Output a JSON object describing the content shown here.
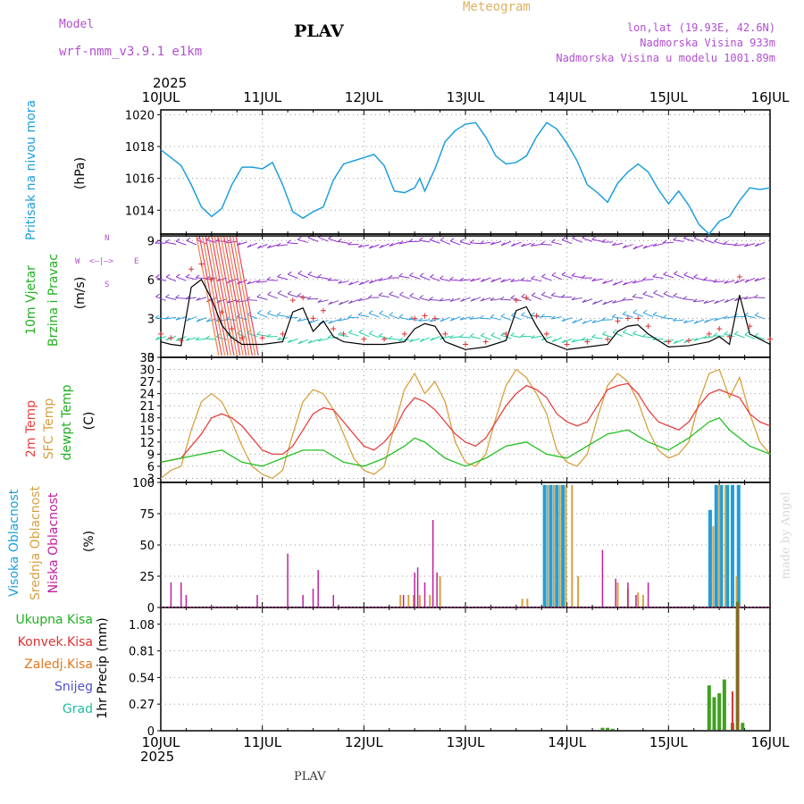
{
  "header": {
    "model_label": "Model",
    "model_name": "wrf-nmm_v3.9.1  e1km",
    "station": "PLAV",
    "title": "Meteogram",
    "lonlat": "lon,lat (19.93E, 42.6N)",
    "altitude": "Nadmorska Visina 933m",
    "model_altitude": "Nadmorska Visina u modelu 1001.89m",
    "credit": "made by Angel",
    "footer_station": "PLAV"
  },
  "time_axis": {
    "year": "2025",
    "ticks": [
      "10JUL",
      "11JUL",
      "12JUL",
      "13JUL",
      "14JUL",
      "15JUL",
      "16JUL"
    ]
  },
  "colors": {
    "pressure": "#1e9fdc",
    "wind_speed": "#000000",
    "gust": "#e03030",
    "temp2m": "#e84040",
    "sfc_temp": "#d8a040",
    "dewpt": "#20c020",
    "high_cloud": "#1e9fdc",
    "mid_cloud": "#d8a040",
    "low_cloud": "#c020a0",
    "total_precip": "#40a020",
    "conv_precip": "#e03030"
  },
  "panels": {
    "pressure": {
      "labels": [
        "Pritisak na nivou mora",
        "(hPa)"
      ],
      "yticks": [
        "1014",
        "1016",
        "1018",
        "1020"
      ]
    },
    "wind": {
      "labels": [
        "10m Vjetar",
        "Brzina i Pravac",
        "(m/s)"
      ],
      "yticks": [
        "0",
        "3",
        "6",
        "9"
      ],
      "compass": {
        "n": "N",
        "s": "S",
        "e": "E",
        "w": "W"
      }
    },
    "temp": {
      "labels": [
        "2m Temp",
        "SFC Temp",
        "dewpt Temp",
        "(C)"
      ],
      "yticks": [
        "3",
        "6",
        "9",
        "12",
        "15",
        "18",
        "21",
        "24",
        "27",
        "30",
        "33"
      ]
    },
    "cloud": {
      "labels": [
        "Visoka Oblacnost",
        "Srednja Oblacnost",
        "Niska Oblacnost",
        "(%)"
      ],
      "yticks": [
        "0",
        "25",
        "50",
        "75",
        "100"
      ]
    },
    "precip": {
      "labels": [
        "Ukupna Kisa",
        "Konvek.Kisa",
        "Zaledj.Kisa",
        "Snijeg",
        "Grad",
        "1hr Precip (mm)"
      ],
      "yticks": [
        "0",
        "0.27",
        "0.54",
        "0.81",
        "1.08"
      ]
    }
  },
  "chart_data": [
    {
      "type": "line",
      "panel": "pressure",
      "x_unit": "day_index",
      "ylim": [
        1012.5,
        1020.3
      ],
      "series": [
        {
          "x": [
            0,
            0.1,
            0.2,
            0.3,
            0.4,
            0.5,
            0.6,
            0.7,
            0.8,
            0.9,
            1.0,
            1.1,
            1.2,
            1.3,
            1.4,
            1.5,
            1.6,
            1.7,
            1.8,
            1.9,
            2.0,
            2.1,
            2.2,
            2.3,
            2.4,
            2.5,
            2.55,
            2.6,
            2.7,
            2.8,
            2.9,
            3.0,
            3.1,
            3.2,
            3.3,
            3.4,
            3.5,
            3.6,
            3.7,
            3.8,
            3.9,
            4.0,
            4.1,
            4.2,
            4.3,
            4.4,
            4.5,
            4.6,
            4.7,
            4.8,
            4.9,
            5.0,
            5.1,
            5.2,
            5.3,
            5.4,
            5.5,
            5.6,
            5.7,
            5.8,
            5.9,
            6.0
          ],
          "values": [
            1017.8,
            1017.3,
            1016.8,
            1015.6,
            1014.2,
            1013.6,
            1014.1,
            1015.6,
            1016.7,
            1016.7,
            1016.6,
            1017.0,
            1015.6,
            1013.9,
            1013.5,
            1013.9,
            1014.2,
            1015.9,
            1016.9,
            1017.1,
            1017.3,
            1017.5,
            1016.8,
            1015.2,
            1015.1,
            1015.4,
            1016.0,
            1015.2,
            1016.6,
            1018.3,
            1019.0,
            1019.4,
            1019.5,
            1018.6,
            1017.4,
            1016.9,
            1017.0,
            1017.4,
            1018.6,
            1019.5,
            1019.1,
            1018.2,
            1017.1,
            1015.6,
            1015.1,
            1014.5,
            1015.7,
            1016.4,
            1016.9,
            1016.4,
            1015.3,
            1014.4,
            1015.2,
            1014.3,
            1013.1,
            1012.5,
            1013.3,
            1013.6,
            1014.6,
            1015.4,
            1015.3,
            1015.4
          ]
        }
      ]
    },
    {
      "type": "line",
      "panel": "wind",
      "x_unit": "day_index",
      "ylim": [
        0,
        9.5
      ],
      "series": [
        {
          "x": [
            0,
            0.1,
            0.2,
            0.3,
            0.4,
            0.5,
            0.6,
            0.7,
            0.8,
            1.0,
            1.2,
            1.3,
            1.4,
            1.5,
            1.6,
            1.7,
            1.8,
            2.0,
            2.2,
            2.4,
            2.5,
            2.6,
            2.7,
            2.8,
            3.0,
            3.2,
            3.4,
            3.5,
            3.6,
            3.7,
            3.8,
            4.0,
            4.2,
            4.4,
            4.5,
            4.6,
            4.7,
            4.8,
            5.0,
            5.2,
            5.4,
            5.5,
            5.6,
            5.7,
            5.8,
            6.0
          ],
          "values": [
            1.2,
            1.0,
            0.9,
            5.4,
            6.0,
            4.5,
            2.5,
            1.5,
            1.0,
            1.0,
            1.2,
            3.5,
            3.8,
            2.0,
            2.8,
            1.6,
            1.2,
            1.0,
            1.0,
            1.2,
            2.2,
            2.6,
            2.4,
            1.2,
            0.6,
            0.8,
            1.3,
            3.6,
            3.9,
            2.4,
            1.2,
            0.6,
            0.8,
            1.0,
            2.0,
            2.4,
            2.5,
            1.8,
            0.8,
            0.9,
            1.2,
            1.6,
            1.0,
            4.8,
            1.8,
            1.0
          ]
        },
        {
          "x": [
            0,
            0.1,
            0.2,
            0.3,
            0.4,
            0.5,
            0.6,
            0.7,
            0.8,
            1.0,
            1.2,
            1.3,
            1.4,
            1.5,
            1.6,
            1.7,
            1.8,
            2.0,
            2.2,
            2.4,
            2.5,
            2.6,
            2.7,
            2.8,
            3.0,
            3.2,
            3.4,
            3.5,
            3.6,
            3.7,
            3.8,
            4.0,
            4.2,
            4.4,
            4.5,
            4.6,
            4.7,
            4.8,
            5.0,
            5.2,
            5.4,
            5.5,
            5.6,
            5.7,
            5.8,
            6.0
          ],
          "values": [
            1.8,
            1.5,
            1.3,
            6.8,
            7.2,
            6.0,
            3.5,
            2.2,
            1.5,
            1.5,
            1.8,
            4.4,
            4.6,
            3.0,
            3.6,
            2.2,
            1.8,
            1.4,
            1.4,
            1.8,
            3.0,
            3.2,
            3.0,
            1.8,
            1.0,
            1.2,
            1.8,
            4.4,
            4.6,
            3.2,
            1.8,
            1.0,
            1.2,
            1.4,
            2.8,
            3.0,
            3.0,
            2.4,
            1.2,
            1.3,
            1.8,
            2.2,
            1.6,
            6.2,
            2.4,
            1.4
          ]
        }
      ]
    },
    {
      "type": "line",
      "panel": "temp",
      "x_unit": "day_index",
      "ylim": [
        2,
        33
      ],
      "series": [
        {
          "x": [
            0,
            0.2,
            0.4,
            0.5,
            0.6,
            0.7,
            0.8,
            0.9,
            1.0,
            1.1,
            1.2,
            1.3,
            1.4,
            1.5,
            1.6,
            1.7,
            1.8,
            1.9,
            2.0,
            2.1,
            2.2,
            2.3,
            2.4,
            2.5,
            2.6,
            2.7,
            2.8,
            2.9,
            3.0,
            3.1,
            3.2,
            3.3,
            3.4,
            3.5,
            3.6,
            3.7,
            3.8,
            3.9,
            4.0,
            4.1,
            4.2,
            4.3,
            4.4,
            4.5,
            4.6,
            4.7,
            4.8,
            4.9,
            5.0,
            5.1,
            5.2,
            5.3,
            5.4,
            5.5,
            5.6,
            5.7,
            5.8,
            5.9,
            6.0
          ],
          "values": [
            7,
            8,
            14,
            18,
            19,
            18,
            16,
            13,
            10,
            9,
            9,
            11,
            15,
            19,
            20.5,
            20,
            17,
            14,
            11,
            10,
            12,
            15,
            20,
            23,
            22,
            20,
            17,
            14,
            12,
            11,
            13,
            17,
            21,
            24,
            26,
            25,
            23,
            19,
            17,
            16,
            17,
            21,
            25,
            26,
            26.5,
            24,
            20,
            17,
            16,
            15,
            17,
            21,
            24,
            25,
            24,
            23,
            19,
            17,
            16
          ]
        },
        {
          "x": [
            0,
            0.1,
            0.2,
            0.3,
            0.4,
            0.5,
            0.6,
            0.7,
            0.8,
            0.9,
            1.0,
            1.1,
            1.2,
            1.3,
            1.4,
            1.5,
            1.6,
            1.7,
            1.8,
            1.9,
            2.0,
            2.1,
            2.2,
            2.3,
            2.4,
            2.5,
            2.6,
            2.7,
            2.8,
            2.9,
            3.0,
            3.1,
            3.2,
            3.3,
            3.4,
            3.5,
            3.6,
            3.7,
            3.8,
            3.9,
            4.0,
            4.1,
            4.2,
            4.3,
            4.4,
            4.5,
            4.6,
            4.7,
            4.8,
            4.9,
            5.0,
            5.1,
            5.2,
            5.3,
            5.4,
            5.5,
            5.6,
            5.7,
            5.8,
            5.9,
            6.0
          ],
          "values": [
            3,
            5,
            6,
            15,
            22,
            24,
            22,
            17,
            11,
            6,
            4,
            3,
            5,
            14,
            22,
            25,
            24,
            20,
            14,
            8,
            5,
            4,
            6,
            16,
            25,
            29,
            24,
            27,
            22,
            12,
            7,
            6,
            9,
            18,
            26,
            30,
            28,
            24,
            19,
            10,
            7,
            6,
            9,
            18,
            26,
            29,
            27,
            22,
            15,
            10,
            8,
            9,
            12,
            22,
            29,
            30,
            23,
            28,
            19,
            12,
            9
          ]
        },
        {
          "x": [
            0,
            0.2,
            0.4,
            0.6,
            0.8,
            1.0,
            1.2,
            1.4,
            1.6,
            1.8,
            2.0,
            2.2,
            2.4,
            2.5,
            2.6,
            2.8,
            3.0,
            3.2,
            3.4,
            3.6,
            3.8,
            4.0,
            4.2,
            4.4,
            4.6,
            4.8,
            5.0,
            5.2,
            5.4,
            5.5,
            5.6,
            5.8,
            6.0
          ],
          "values": [
            7,
            8,
            9,
            10,
            7,
            6,
            8,
            10,
            10,
            7,
            6,
            8,
            11,
            13,
            12,
            8,
            6,
            8,
            11,
            12,
            9,
            8,
            11,
            14,
            15,
            12,
            10,
            13,
            17,
            18,
            15,
            11,
            9
          ]
        }
      ]
    },
    {
      "type": "bar",
      "panel": "cloud",
      "x_unit": "day_index",
      "ylim": [
        0,
        100
      ],
      "series": [
        {
          "name": "Visoka Oblacnost",
          "x": [
            3.78,
            3.84,
            3.9,
            3.96,
            5.41,
            5.47,
            5.52,
            5.58,
            5.63,
            5.69
          ],
          "values": [
            98,
            98,
            98,
            98,
            78,
            98,
            98,
            98,
            98,
            98
          ]
        },
        {
          "name": "Srednja Oblacnost",
          "x": [
            2.36,
            2.44,
            2.49,
            2.55,
            2.65,
            2.75,
            3.56,
            3.61,
            3.81,
            3.87,
            3.93,
            3.99,
            4.05,
            4.11,
            4.5,
            4.6,
            4.7,
            4.75,
            5.44,
            5.5,
            5.56,
            5.67
          ],
          "values": [
            10,
            10,
            10,
            10,
            10,
            25,
            7,
            7,
            98,
            98,
            98,
            98,
            98,
            25,
            20,
            15,
            12,
            10,
            65,
            98,
            98,
            25
          ]
        },
        {
          "name": "Niska Oblacnost",
          "x": [
            0.1,
            0.2,
            0.25,
            0.95,
            1.25,
            1.4,
            1.5,
            1.55,
            1.7,
            2.39,
            2.5,
            2.53,
            2.6,
            2.68,
            2.72,
            4.35,
            4.48,
            4.6,
            4.68,
            4.8
          ],
          "values": [
            20,
            20,
            10,
            10,
            43,
            10,
            15,
            30,
            10,
            10,
            28,
            32,
            20,
            70,
            28,
            46,
            23,
            20,
            10,
            20
          ]
        }
      ]
    },
    {
      "type": "bar",
      "panel": "precip",
      "x_unit": "day_index",
      "ylim": [
        0,
        1.25
      ],
      "series": [
        {
          "name": "Ukupna Kisa",
          "x": [
            4.35,
            4.4,
            4.45,
            5.4,
            5.45,
            5.5,
            5.55,
            5.63,
            5.68,
            5.73
          ],
          "values": [
            0.03,
            0.03,
            0.02,
            0.46,
            0.34,
            0.38,
            0.52,
            0.08,
            1.31,
            0.08
          ]
        },
        {
          "name": "Konvek.Kisa",
          "x": [
            5.63,
            5.68
          ],
          "values": [
            0.4,
            1.3
          ]
        }
      ]
    }
  ]
}
